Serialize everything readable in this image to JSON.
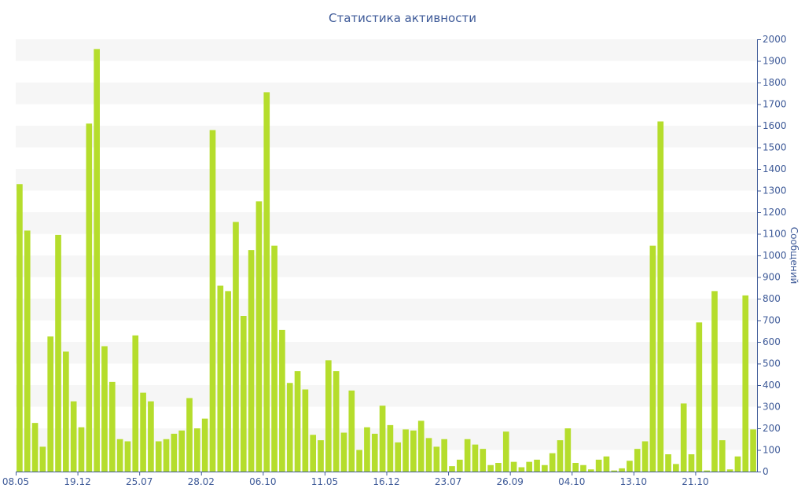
{
  "chart_data": {
    "type": "bar",
    "title": "Статистика активности",
    "ylabel": "Сообщений",
    "xlabel": "",
    "ylim": [
      0,
      2000
    ],
    "y_ticks": [
      0,
      100,
      200,
      300,
      400,
      500,
      600,
      700,
      800,
      900,
      1000,
      1100,
      1200,
      1300,
      1400,
      1500,
      1600,
      1700,
      1800,
      1900,
      2000
    ],
    "grid": "horizontal bands",
    "y_axis_side": "right",
    "bar_color": "#b5dd2c",
    "band_color": "#f6f6f6",
    "text_color": "#3e5a98",
    "x_tick_labels": [
      {
        "index": 0,
        "label": "08.05"
      },
      {
        "index": 8,
        "label": "19.12"
      },
      {
        "index": 16,
        "label": "25.07"
      },
      {
        "index": 24,
        "label": "28.02"
      },
      {
        "index": 32,
        "label": "06.10"
      },
      {
        "index": 40,
        "label": "11.05"
      },
      {
        "index": 48,
        "label": "16.12"
      },
      {
        "index": 56,
        "label": "23.07"
      },
      {
        "index": 64,
        "label": "26.09"
      },
      {
        "index": 72,
        "label": "04.10"
      },
      {
        "index": 80,
        "label": "13.10"
      },
      {
        "index": 88,
        "label": "21.10"
      }
    ],
    "values": [
      1330,
      1115,
      225,
      115,
      625,
      1095,
      555,
      325,
      205,
      1610,
      1955,
      580,
      415,
      150,
      140,
      630,
      365,
      325,
      140,
      150,
      175,
      190,
      340,
      200,
      245,
      1580,
      860,
      835,
      1155,
      720,
      1025,
      1250,
      1755,
      1045,
      655,
      410,
      465,
      380,
      170,
      145,
      515,
      465,
      180,
      375,
      100,
      205,
      175,
      305,
      215,
      135,
      195,
      190,
      235,
      155,
      115,
      150,
      25,
      55,
      150,
      125,
      105,
      30,
      40,
      185,
      45,
      20,
      45,
      55,
      30,
      85,
      145,
      200,
      40,
      30,
      10,
      55,
      70,
      5,
      15,
      50,
      105,
      140,
      1045,
      1620,
      80,
      35,
      315,
      80,
      690,
      5,
      835,
      145,
      10,
      70,
      815,
      195
    ]
  }
}
